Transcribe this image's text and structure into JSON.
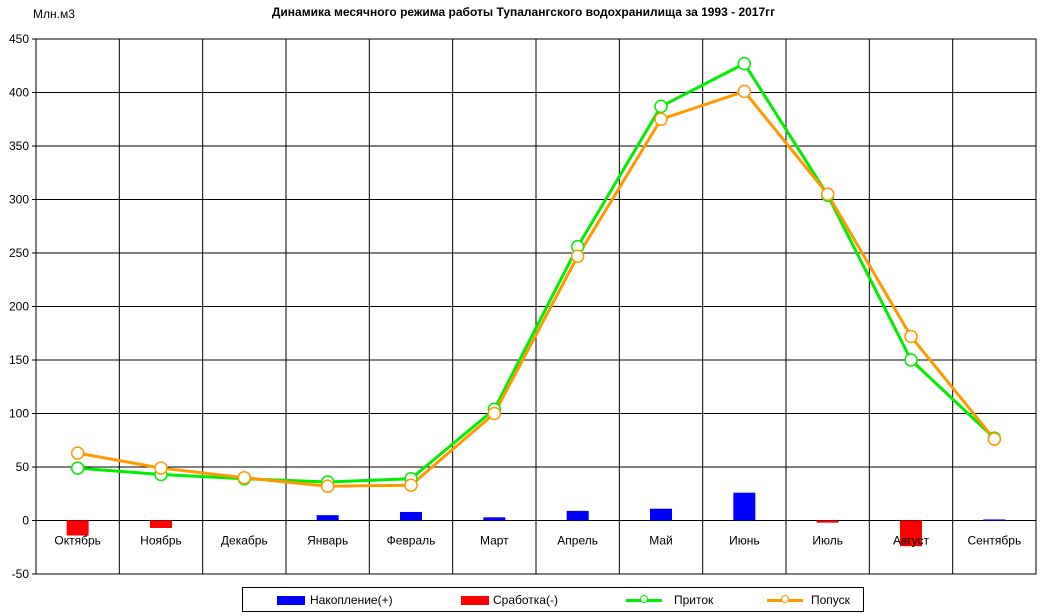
{
  "chart_data": {
    "type": "bar+line",
    "title": "Динамика месячного режима работы Тупалангского водохранилища за 1993 - 2017гг",
    "unit_label": "Млн.м3",
    "categories": [
      "Октябрь",
      "Ноябрь",
      "Декабрь",
      "Январь",
      "Февраль",
      "Март",
      "Апрель",
      "Май",
      "Июнь",
      "Июль",
      "Август",
      "Сентябрь"
    ],
    "ylim": [
      -50,
      450
    ],
    "yticks": [
      "-50",
      "0",
      "50",
      "100",
      "150",
      "200",
      "250",
      "300",
      "350",
      "400",
      "450"
    ],
    "grid": true,
    "legend_position": "bottom",
    "series": [
      {
        "name": "Накопление(+)",
        "kind": "bar",
        "color": "#0000ff",
        "values": [
          0,
          0,
          0,
          5,
          8,
          3,
          9,
          11,
          26,
          0,
          0,
          1
        ]
      },
      {
        "name": "Сработка(-)",
        "kind": "bar",
        "color": "#ff0000",
        "values": [
          -14,
          -7,
          0,
          0,
          0,
          0,
          0,
          0,
          0,
          -2,
          -24,
          0
        ]
      },
      {
        "name": "Приток",
        "kind": "line",
        "color": "#00ee00",
        "values": [
          49,
          43,
          39,
          36,
          39,
          104,
          256,
          387,
          427,
          304,
          150,
          77
        ]
      },
      {
        "name": "Попуск",
        "kind": "line",
        "color": "#ff9900",
        "values": [
          63,
          49,
          40,
          32,
          33,
          100,
          247,
          375,
          401,
          305,
          172,
          76
        ]
      }
    ]
  }
}
